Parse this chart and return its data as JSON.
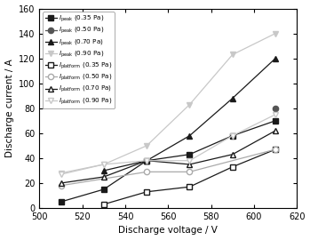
{
  "x_035p": [
    510,
    530,
    550,
    570,
    590,
    610
  ],
  "y_035p": [
    5,
    15,
    38,
    43,
    58,
    70
  ],
  "x_050p": [
    510,
    530,
    550,
    570,
    590,
    610
  ],
  "y_050p": [
    null,
    null,
    null,
    null,
    null,
    80
  ],
  "x_070p": [
    510,
    530,
    550,
    570,
    590,
    610
  ],
  "y_070p": [
    null,
    30,
    38,
    58,
    88,
    120
  ],
  "x_090p": [
    510,
    530,
    550,
    570,
    590,
    610
  ],
  "y_090p": [
    28,
    35,
    50,
    83,
    123,
    140
  ],
  "x_035pl": [
    510,
    530,
    550,
    570,
    590,
    610
  ],
  "y_035pl": [
    null,
    3,
    13,
    17,
    33,
    47
  ],
  "x_050pl": [
    510,
    530,
    550,
    570,
    590,
    610
  ],
  "y_050pl": [
    18,
    null,
    29,
    29,
    null,
    47
  ],
  "x_070pl": [
    510,
    530,
    550,
    570,
    590,
    610
  ],
  "y_070pl": [
    20,
    25,
    38,
    35,
    43,
    62
  ],
  "x_090pl": [
    510,
    530,
    550,
    570,
    590,
    610
  ],
  "y_090pl": [
    27,
    35,
    38,
    38,
    58,
    75
  ],
  "ylim": [
    0,
    160
  ],
  "xlim": [
    500,
    620
  ],
  "yticks": [
    0,
    20,
    40,
    60,
    80,
    100,
    120,
    140,
    160
  ],
  "xticks": [
    500,
    520,
    540,
    560,
    580,
    600,
    620
  ],
  "ylabel": "Discharge current / A",
  "xlabel": "Discharge voltage / V",
  "c_black": "#1a1a1a",
  "c_dgray": "#555555",
  "c_lgray": "#aaaaaa",
  "c_vlgray": "#c8c8c8"
}
